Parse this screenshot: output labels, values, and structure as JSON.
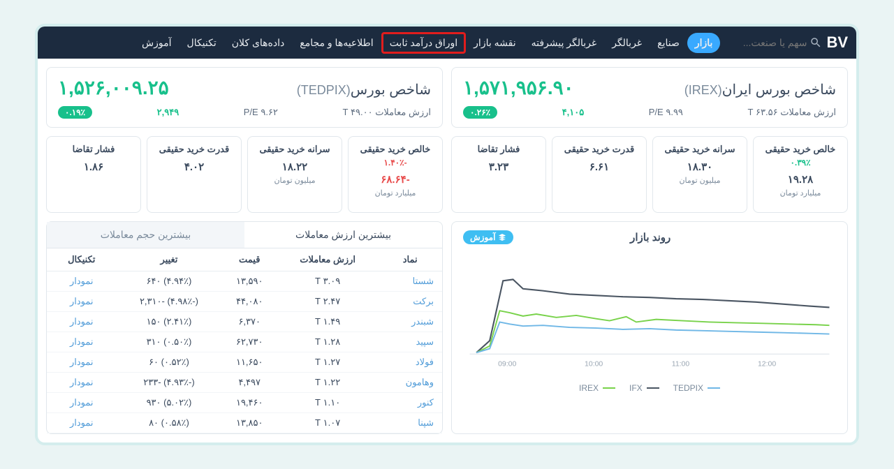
{
  "nav": {
    "logo": "BV",
    "search_placeholder": "سهم یا صنعت...",
    "items": [
      {
        "label": "بازار",
        "active": true
      },
      {
        "label": "صنایع"
      },
      {
        "label": "غربالگر"
      },
      {
        "label": "غربالگر پیشرفته"
      },
      {
        "label": "نقشه بازار"
      },
      {
        "label": "اوراق درآمد ثابت",
        "highlight": true
      },
      {
        "label": "اطلاعیه‌ها و مجامع"
      },
      {
        "label": "داده‌های کلان"
      },
      {
        "label": "تکنیکال"
      },
      {
        "label": "آموزش"
      }
    ]
  },
  "indices": {
    "right": {
      "title": "شاخص بورس ایران",
      "sub": "(IREX)",
      "value": "۱,۵۷۱,۹۵۶.۹۰",
      "txn_label": "ارزش معاملات",
      "txn_value": "۶۳.۵۶ T",
      "pe_label": "P/E",
      "pe": "۹.۹۹",
      "delta": "۴,۱۰۵",
      "pct": "۰.۲۶٪"
    },
    "left": {
      "title": "شاخص بورس",
      "sub": "(TEDPIX)",
      "value": "۱,۵۲۶,۰۰۹.۲۵",
      "txn_label": "ارزش معاملات",
      "txn_value": "۴۹.۰۰ T",
      "pe_label": "P/E",
      "pe": "۹.۶۲",
      "delta": "۲,۹۴۹",
      "pct": "۰.۱۹٪"
    }
  },
  "stats_right": [
    {
      "title": "خالص خرید حقیقی",
      "pct": "۰.۳۹٪",
      "pct_pos": true,
      "val": "۱۹.۲۸",
      "unit": "میلیارد تومان"
    },
    {
      "title": "سرانه خرید حقیقی",
      "val": "۱۸.۳۰",
      "unit": "میلیون تومان"
    },
    {
      "title": "قدرت خرید حقیقی",
      "val": "۶.۶۱"
    },
    {
      "title": "فشار تقاضا",
      "val": "۳.۲۳"
    }
  ],
  "stats_left": [
    {
      "title": "خالص خرید حقیقی",
      "pct": "-۱.۴۰٪",
      "pct_pos": false,
      "val": "-۶۸.۶۴",
      "val_neg": true,
      "unit": "میلیارد تومان"
    },
    {
      "title": "سرانه خرید حقیقی",
      "val": "۱۸.۲۲",
      "unit": "میلیون تومان"
    },
    {
      "title": "قدرت خرید حقیقی",
      "val": "۴.۰۲"
    },
    {
      "title": "فشار تقاضا",
      "val": "۱.۸۶"
    }
  ],
  "chart": {
    "title": "روند بازار",
    "edu": "آموزش",
    "xticks": [
      "09:00",
      "10:00",
      "11:00",
      "12:00"
    ],
    "series": {
      "TEDPIX": {
        "color": "#6fb7e6"
      },
      "IFX": {
        "color": "#4a5562"
      },
      "IREX": {
        "color": "#78d24a"
      }
    },
    "legend": [
      "TEDPIX",
      "IFX",
      "IREX"
    ]
  },
  "table": {
    "tab_active": "بیشترین ارزش معاملات",
    "tab_inactive": "بیشترین حجم معاملات",
    "headers": [
      "نماد",
      "ارزش معاملات",
      "قیمت",
      "تغییر",
      "تکنیکال"
    ],
    "link": "نمودار",
    "rows": [
      {
        "sym": "شستا",
        "tv": "۳.۰۹ T",
        "price": "۱۳,۵۹۰",
        "chg": "۶۴۰",
        "pct": "(۴.۹۴٪)",
        "pos": true
      },
      {
        "sym": "برکت",
        "tv": "۲.۴۷ T",
        "price": "۴۴,۰۸۰",
        "chg": "-۲,۳۱۰",
        "pct": "(-۴.۹۸٪)",
        "pos": false
      },
      {
        "sym": "شبندر",
        "tv": "۱.۴۹ T",
        "price": "۶,۳۷۰",
        "chg": "۱۵۰",
        "pct": "(۲.۴۱٪)",
        "pos": true
      },
      {
        "sym": "سپید",
        "tv": "۱.۲۸ T",
        "price": "۶۲,۷۳۰",
        "chg": "۳۱۰",
        "pct": "(۰.۵۰٪)",
        "pos": true
      },
      {
        "sym": "فولاد",
        "tv": "۱.۲۷ T",
        "price": "۱۱,۶۵۰",
        "chg": "۶۰",
        "pct": "(۰.۵۲٪)",
        "pos": true
      },
      {
        "sym": "وهامون",
        "tv": "۱.۲۲ T",
        "price": "۴,۴۹۷",
        "chg": "-۲۳۳",
        "pct": "(-۴.۹۳٪)",
        "pos": false
      },
      {
        "sym": "کنور",
        "tv": "۱.۱۰ T",
        "price": "۱۹,۴۶۰",
        "chg": "۹۳۰",
        "pct": "(۵.۰۲٪)",
        "pos": true
      },
      {
        "sym": "شپنا",
        "tv": "۱.۰۷ T",
        "price": "۱۳,۸۵۰",
        "chg": "۸۰",
        "pct": "(۰.۵۸٪)",
        "pos": true
      }
    ]
  }
}
